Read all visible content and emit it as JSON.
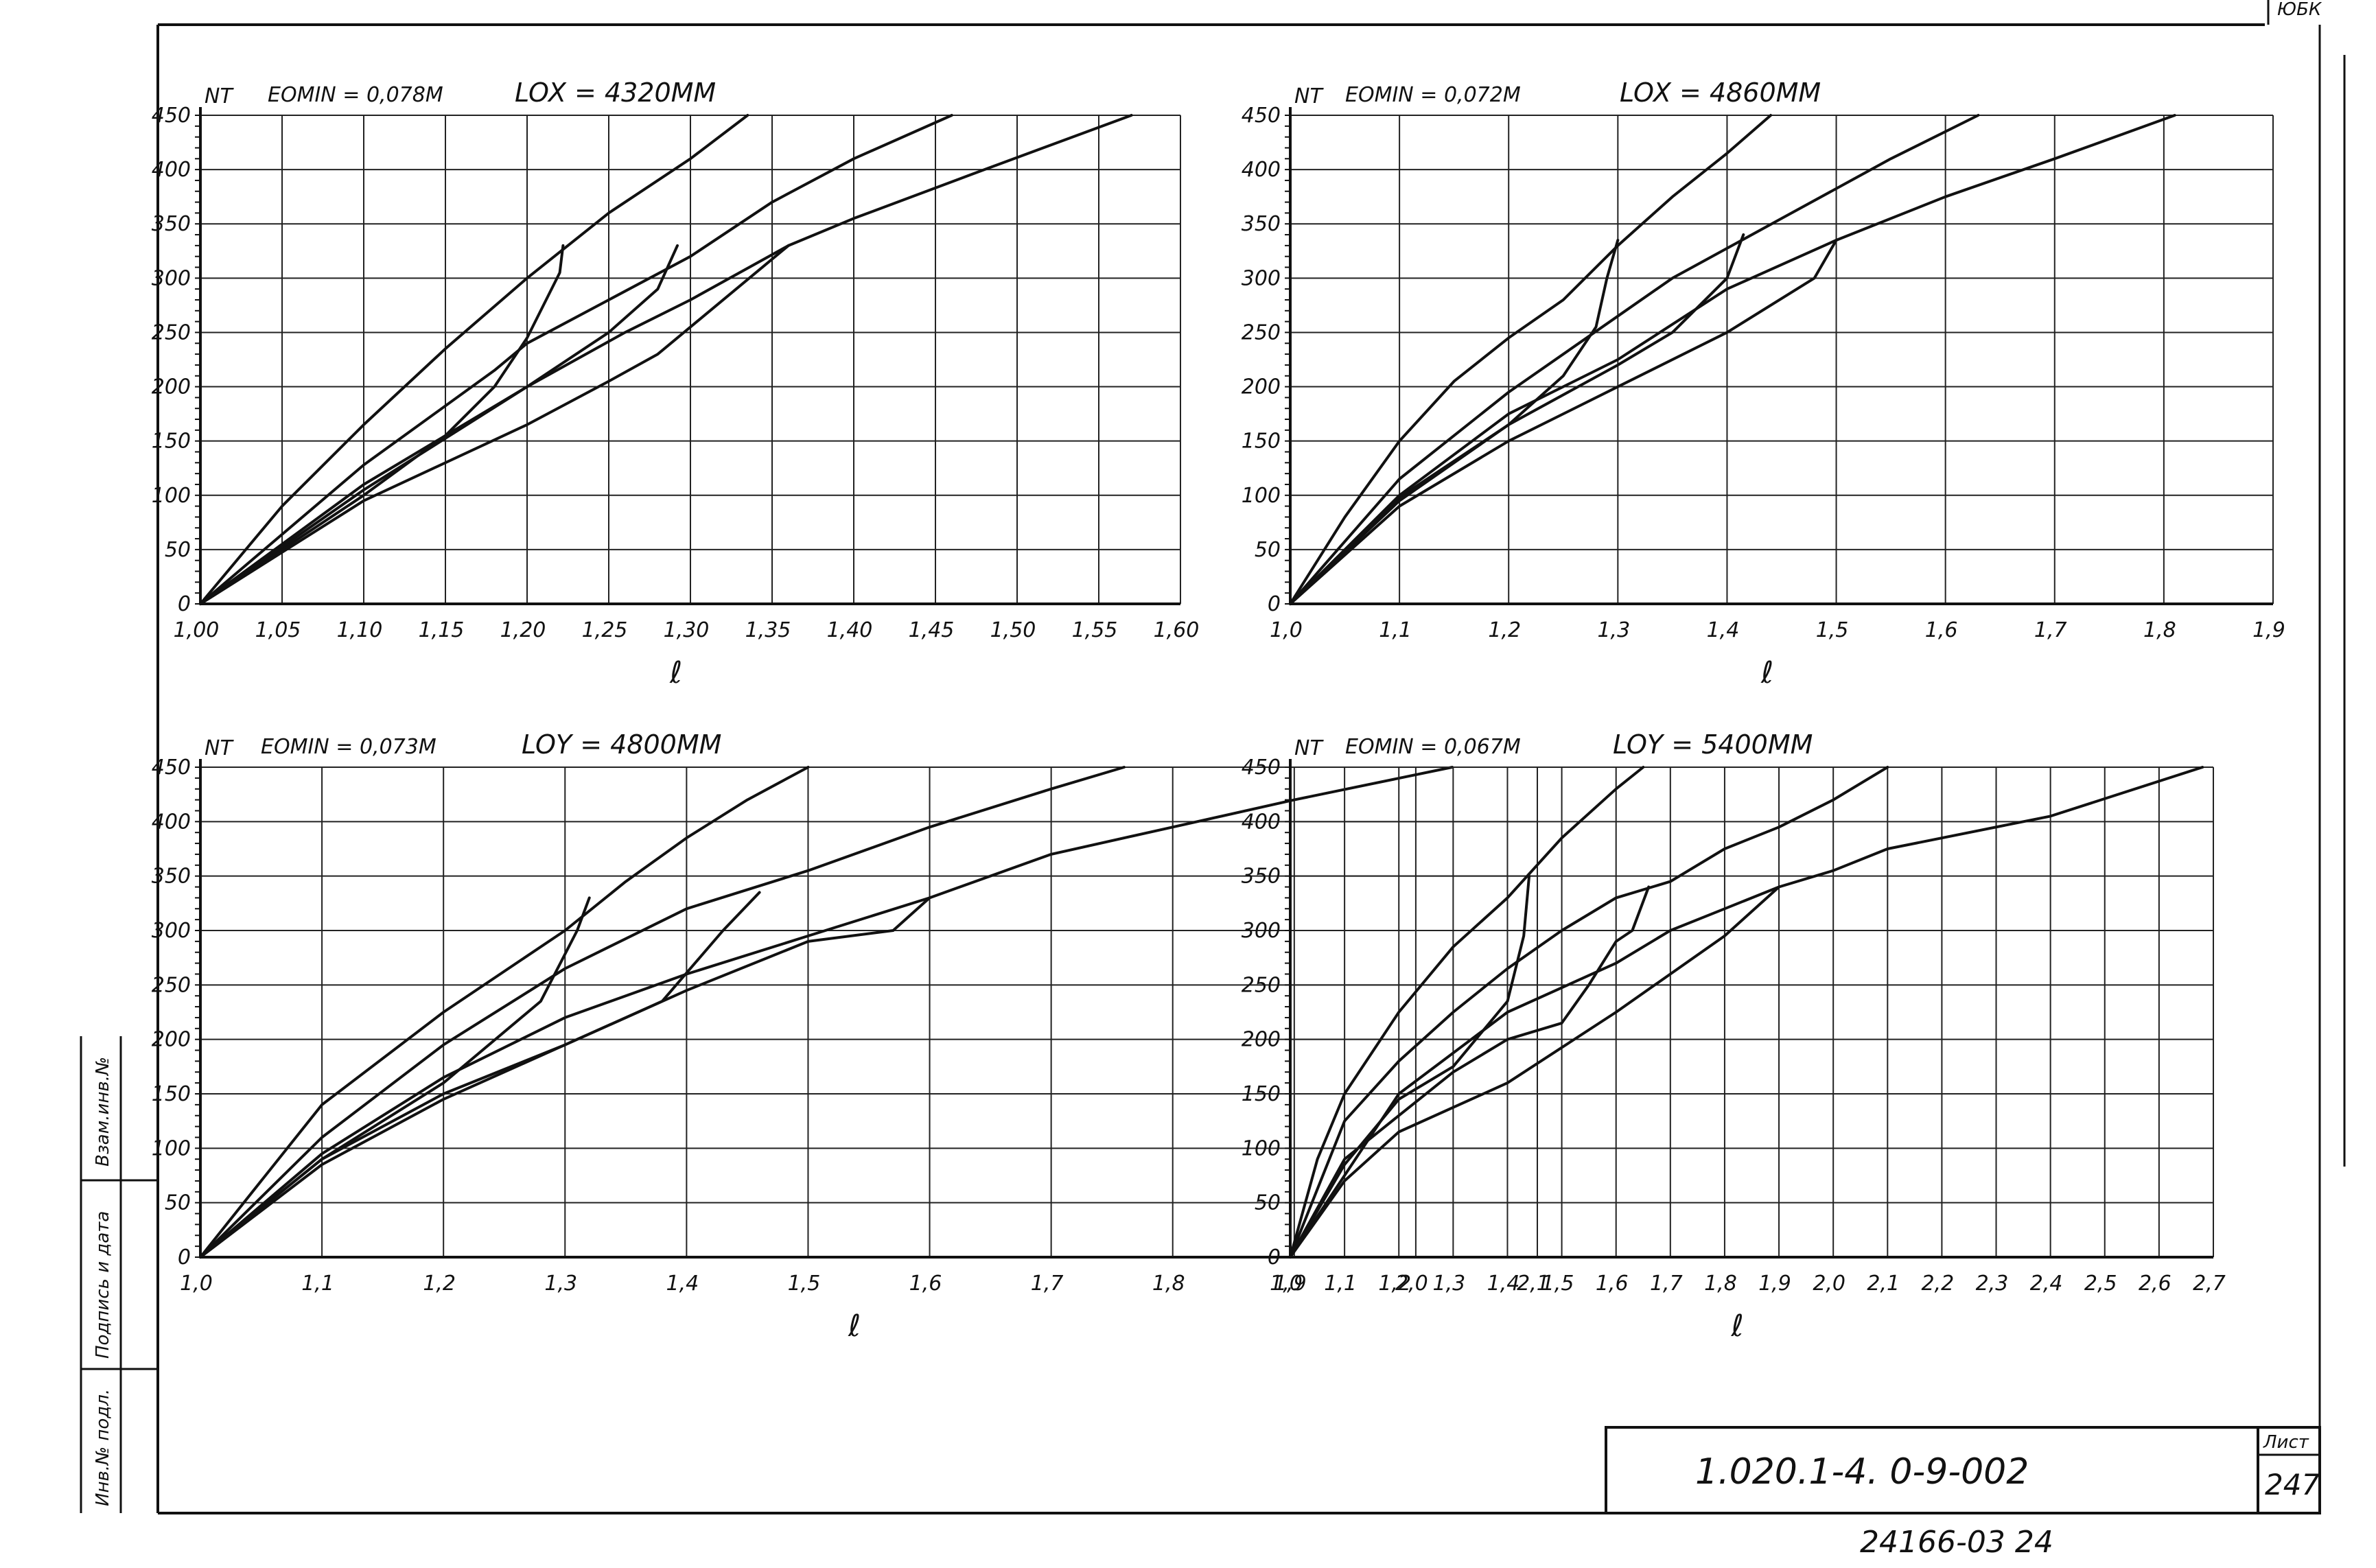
{
  "sheet": {
    "corner_mark": "ЮБК",
    "designation": "1.020.1-4.   0-9-002",
    "sheet_label": "Лист",
    "sheet_number": "247",
    "bottom_code": "24166-03   24",
    "side_stamp_1": "Взам.инв.№",
    "side_stamp_2": "Подпись и дата",
    "side_stamp_3": "Инв.№ подл."
  },
  "chart_data": [
    {
      "type": "line",
      "panel": "top-left",
      "ylabel": "NT",
      "xlabel": "ℓ",
      "annotations": [
        "EOMIN = 0,078M",
        "LOX = 4320MM"
      ],
      "xlim": [
        1.0,
        1.6
      ],
      "ylim": [
        0,
        450
      ],
      "x_ticks": [
        1.0,
        1.05,
        1.1,
        1.15,
        1.2,
        1.25,
        1.3,
        1.35,
        1.4,
        1.45,
        1.5,
        1.55,
        1.6
      ],
      "x_tick_labels": [
        "1,00",
        "1,05",
        "1,10",
        "1,15",
        "1,20",
        "1,25",
        "1,30",
        "1,35",
        "1,40",
        "1,45",
        "1,50",
        "1,55",
        "1,60"
      ],
      "y_ticks": [
        0,
        50,
        100,
        150,
        200,
        250,
        300,
        350,
        400,
        450
      ],
      "y_tick_labels": [
        "0",
        "50",
        "100",
        "150",
        "200",
        "250",
        "300",
        "350",
        "400",
        "450"
      ],
      "grid": true,
      "series": [
        {
          "points": [
            [
              1.0,
              0
            ],
            [
              1.05,
              90
            ],
            [
              1.1,
              165
            ],
            [
              1.15,
              235
            ],
            [
              1.2,
              300
            ],
            [
              1.25,
              360
            ],
            [
              1.3,
              410
            ],
            [
              1.335,
              450
            ]
          ]
        },
        {
          "points": [
            [
              1.0,
              0
            ],
            [
              1.1,
              128
            ],
            [
              1.18,
              215
            ],
            [
              1.2,
              240
            ],
            [
              1.25,
              280
            ],
            [
              1.3,
              320
            ],
            [
              1.35,
              370
            ],
            [
              1.4,
              410
            ],
            [
              1.46,
              450
            ]
          ]
        },
        {
          "points": [
            [
              1.0,
              0
            ],
            [
              1.1,
              110
            ],
            [
              1.2,
              200
            ],
            [
              1.26,
              250
            ],
            [
              1.3,
              280
            ],
            [
              1.36,
              330
            ],
            [
              1.4,
              355
            ],
            [
              1.48,
              400
            ],
            [
              1.57,
              450
            ]
          ]
        },
        {
          "points": [
            [
              1.0,
              0
            ],
            [
              1.1,
              95
            ],
            [
              1.2,
              165
            ],
            [
              1.25,
              205
            ],
            [
              1.28,
              230
            ],
            [
              1.36,
              330
            ]
          ]
        },
        {
          "points": [
            [
              1.0,
              0
            ],
            [
              1.1,
              100
            ],
            [
              1.15,
              155
            ],
            [
              1.18,
              200
            ],
            [
              1.2,
              245
            ],
            [
              1.22,
              305
            ],
            [
              1.222,
              330
            ]
          ]
        },
        {
          "points": [
            [
              1.0,
              0
            ],
            [
              1.1,
              105
            ],
            [
              1.2,
              200
            ],
            [
              1.25,
              250
            ],
            [
              1.28,
              290
            ],
            [
              1.292,
              330
            ]
          ]
        }
      ]
    },
    {
      "type": "line",
      "panel": "top-right",
      "ylabel": "NT",
      "xlabel": "ℓ",
      "annotations": [
        "EOMIN = 0,072M",
        "LOX = 4860MM"
      ],
      "xlim": [
        1.0,
        1.9
      ],
      "ylim": [
        0,
        450
      ],
      "x_ticks": [
        1.0,
        1.1,
        1.2,
        1.3,
        1.4,
        1.5,
        1.6,
        1.7,
        1.8,
        1.9
      ],
      "x_tick_labels": [
        "1,0",
        "1,1",
        "1,2",
        "1,3",
        "1,4",
        "1,5",
        "1,6",
        "1,7",
        "1,8",
        "1,9"
      ],
      "y_ticks": [
        0,
        50,
        100,
        150,
        200,
        250,
        300,
        350,
        400,
        450
      ],
      "y_tick_labels": [
        "0",
        "50",
        "100",
        "150",
        "200",
        "250",
        "300",
        "350",
        "400",
        "450"
      ],
      "grid": true,
      "series": [
        {
          "points": [
            [
              1.0,
              0
            ],
            [
              1.05,
              80
            ],
            [
              1.1,
              150
            ],
            [
              1.15,
              205
            ],
            [
              1.2,
              245
            ],
            [
              1.25,
              280
            ],
            [
              1.3,
              330
            ],
            [
              1.35,
              375
            ],
            [
              1.4,
              415
            ],
            [
              1.44,
              450
            ]
          ]
        },
        {
          "points": [
            [
              1.0,
              0
            ],
            [
              1.1,
              115
            ],
            [
              1.2,
              195
            ],
            [
              1.3,
              265
            ],
            [
              1.35,
              300
            ],
            [
              1.45,
              355
            ],
            [
              1.55,
              410
            ],
            [
              1.63,
              450
            ]
          ]
        },
        {
          "points": [
            [
              1.0,
              0
            ],
            [
              1.1,
              100
            ],
            [
              1.2,
              175
            ],
            [
              1.3,
              225
            ],
            [
              1.4,
              290
            ],
            [
              1.5,
              335
            ],
            [
              1.6,
              375
            ],
            [
              1.7,
              410
            ],
            [
              1.81,
              450
            ]
          ]
        },
        {
          "points": [
            [
              1.0,
              0
            ],
            [
              1.1,
              90
            ],
            [
              1.2,
              150
            ],
            [
              1.3,
              200
            ],
            [
              1.4,
              250
            ],
            [
              1.48,
              300
            ],
            [
              1.5,
              335
            ]
          ]
        },
        {
          "points": [
            [
              1.0,
              0
            ],
            [
              1.1,
              95
            ],
            [
              1.2,
              165
            ],
            [
              1.25,
              210
            ],
            [
              1.28,
              255
            ],
            [
              1.29,
              300
            ],
            [
              1.3,
              335
            ]
          ]
        },
        {
          "points": [
            [
              1.0,
              0
            ],
            [
              1.1,
              98
            ],
            [
              1.2,
              165
            ],
            [
              1.3,
              220
            ],
            [
              1.35,
              250
            ],
            [
              1.4,
              300
            ],
            [
              1.415,
              340
            ]
          ]
        }
      ]
    },
    {
      "type": "line",
      "panel": "bottom-left",
      "ylabel": "NT",
      "xlabel": "ℓ",
      "annotations": [
        "EOMIN = 0,073M",
        "LOY = 4800MM"
      ],
      "xlim": [
        1.0,
        2.1
      ],
      "ylim": [
        0,
        450
      ],
      "x_ticks": [
        1.0,
        1.1,
        1.2,
        1.3,
        1.4,
        1.5,
        1.6,
        1.7,
        1.8,
        1.9,
        2.0,
        2.1
      ],
      "x_tick_labels": [
        "1,0",
        "1,1",
        "1,2",
        "1,3",
        "1,4",
        "1,5",
        "1,6",
        "1,7",
        "1,8",
        "1,9",
        "2,0",
        "2,1"
      ],
      "y_ticks": [
        0,
        50,
        100,
        150,
        200,
        250,
        300,
        350,
        400,
        450
      ],
      "y_tick_labels": [
        "0",
        "50",
        "100",
        "150",
        "200",
        "250",
        "300",
        "350",
        "400",
        "450"
      ],
      "grid": true,
      "series": [
        {
          "points": [
            [
              1.0,
              0
            ],
            [
              1.05,
              70
            ],
            [
              1.1,
              140
            ],
            [
              1.2,
              225
            ],
            [
              1.3,
              300
            ],
            [
              1.35,
              345
            ],
            [
              1.4,
              385
            ],
            [
              1.45,
              420
            ],
            [
              1.5,
              450
            ]
          ]
        },
        {
          "points": [
            [
              1.0,
              0
            ],
            [
              1.1,
              110
            ],
            [
              1.2,
              195
            ],
            [
              1.3,
              265
            ],
            [
              1.4,
              320
            ],
            [
              1.5,
              355
            ],
            [
              1.6,
              395
            ],
            [
              1.7,
              430
            ],
            [
              1.76,
              450
            ]
          ]
        },
        {
          "points": [
            [
              1.0,
              0
            ],
            [
              1.1,
              95
            ],
            [
              1.2,
              165
            ],
            [
              1.3,
              220
            ],
            [
              1.4,
              260
            ],
            [
              1.5,
              295
            ],
            [
              1.6,
              330
            ],
            [
              1.7,
              370
            ],
            [
              1.8,
              395
            ],
            [
              1.9,
              420
            ],
            [
              2.03,
              450
            ]
          ]
        },
        {
          "points": [
            [
              1.0,
              0
            ],
            [
              1.1,
              85
            ],
            [
              1.2,
              145
            ],
            [
              1.3,
              195
            ],
            [
              1.4,
              245
            ],
            [
              1.5,
              290
            ],
            [
              1.57,
              300
            ],
            [
              1.6,
              330
            ]
          ]
        },
        {
          "points": [
            [
              1.0,
              0
            ],
            [
              1.1,
              90
            ],
            [
              1.2,
              160
            ],
            [
              1.28,
              235
            ],
            [
              1.31,
              300
            ],
            [
              1.32,
              330
            ]
          ]
        },
        {
          "points": [
            [
              1.0,
              0
            ],
            [
              1.1,
              90
            ],
            [
              1.2,
              150
            ],
            [
              1.3,
              195
            ],
            [
              1.38,
              235
            ],
            [
              1.43,
              300
            ],
            [
              1.46,
              335
            ]
          ]
        }
      ]
    },
    {
      "type": "line",
      "panel": "bottom-right",
      "ylabel": "NT",
      "xlabel": "ℓ",
      "annotations": [
        "EOMIN = 0,067M",
        "LOY = 5400MM"
      ],
      "xlim": [
        1.0,
        2.7
      ],
      "ylim": [
        0,
        450
      ],
      "x_ticks": [
        1.0,
        1.1,
        1.2,
        1.3,
        1.4,
        1.5,
        1.6,
        1.7,
        1.8,
        1.9,
        2.0,
        2.1,
        2.2,
        2.3,
        2.4,
        2.5,
        2.6,
        2.7
      ],
      "x_tick_labels": [
        "1,0",
        "1,1",
        "1,2",
        "1,3",
        "1,4",
        "1,5",
        "1,6",
        "1,7",
        "1,8",
        "1,9",
        "2,0",
        "2,1",
        "2,2",
        "2,3",
        "2,4",
        "2,5",
        "2,6",
        "2,7"
      ],
      "y_ticks": [
        0,
        50,
        100,
        150,
        200,
        250,
        300,
        350,
        400,
        450
      ],
      "y_tick_labels": [
        "0",
        "50",
        "100",
        "150",
        "200",
        "250",
        "300",
        "350",
        "400",
        "450"
      ],
      "grid": true,
      "series": [
        {
          "points": [
            [
              1.0,
              0
            ],
            [
              1.05,
              90
            ],
            [
              1.1,
              150
            ],
            [
              1.2,
              225
            ],
            [
              1.3,
              285
            ],
            [
              1.4,
              330
            ],
            [
              1.5,
              385
            ],
            [
              1.6,
              430
            ],
            [
              1.65,
              450
            ]
          ]
        },
        {
          "points": [
            [
              1.0,
              0
            ],
            [
              1.1,
              125
            ],
            [
              1.2,
              180
            ],
            [
              1.3,
              225
            ],
            [
              1.4,
              265
            ],
            [
              1.5,
              300
            ],
            [
              1.6,
              330
            ],
            [
              1.7,
              345
            ],
            [
              1.8,
              375
            ],
            [
              1.9,
              395
            ],
            [
              2.0,
              420
            ],
            [
              2.1,
              450
            ]
          ]
        },
        {
          "points": [
            [
              1.0,
              0
            ],
            [
              1.2,
              150
            ],
            [
              1.4,
              225
            ],
            [
              1.6,
              270
            ],
            [
              1.7,
              300
            ],
            [
              1.8,
              320
            ],
            [
              1.9,
              340
            ],
            [
              2.0,
              355
            ],
            [
              2.1,
              375
            ],
            [
              2.4,
              405
            ],
            [
              2.68,
              450
            ]
          ]
        },
        {
          "points": [
            [
              1.0,
              0
            ],
            [
              1.1,
              70
            ],
            [
              1.2,
              115
            ],
            [
              1.4,
              160
            ],
            [
              1.6,
              225
            ],
            [
              1.8,
              295
            ],
            [
              1.9,
              340
            ]
          ]
        },
        {
          "points": [
            [
              1.0,
              0
            ],
            [
              1.1,
              85
            ],
            [
              1.2,
              145
            ],
            [
              1.3,
              175
            ],
            [
              1.4,
              235
            ],
            [
              1.43,
              295
            ],
            [
              1.44,
              350
            ]
          ]
        },
        {
          "points": [
            [
              1.0,
              0
            ],
            [
              1.1,
              90
            ],
            [
              1.2,
              130
            ],
            [
              1.3,
              170
            ],
            [
              1.4,
              200
            ],
            [
              1.5,
              215
            ],
            [
              1.55,
              250
            ],
            [
              1.6,
              290
            ],
            [
              1.63,
              300
            ],
            [
              1.66,
              340
            ]
          ]
        }
      ]
    }
  ]
}
